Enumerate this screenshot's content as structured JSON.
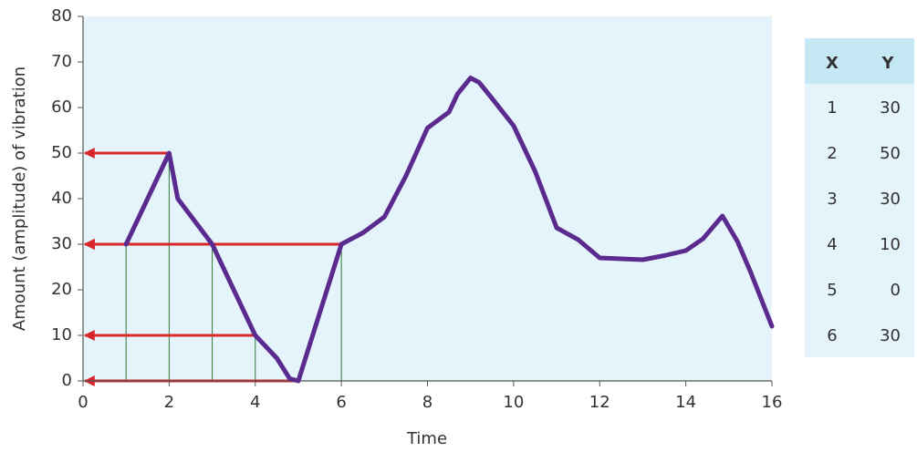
{
  "chart_data": {
    "type": "line",
    "x_label": "Time",
    "y_label": "Amount (amplitude) of vibration",
    "x": [
      1,
      2,
      2.2,
      3,
      4,
      4.5,
      4.8,
      5,
      6,
      6.5,
      7,
      7.5,
      8,
      8.5,
      8.7,
      9,
      9.2,
      9.5,
      10,
      10.5,
      11,
      11.5,
      12,
      13,
      13.5,
      14,
      14.4,
      14.85,
      15.2,
      15.5,
      16
    ],
    "series": [
      {
        "color": "#5b2a8e",
        "values": [
          30,
          50,
          40,
          30,
          10,
          5,
          0.5,
          0,
          30,
          32.5,
          36,
          45,
          55.5,
          59,
          63,
          66.5,
          65.5,
          62,
          56,
          46,
          33.6,
          31,
          27,
          26.6,
          27.5,
          28.6,
          31.2,
          36.2,
          30.6,
          24,
          12
        ]
      }
    ],
    "xlim": [
      0,
      16
    ],
    "ylim": [
      0,
      80
    ],
    "xticks": [
      0,
      2,
      4,
      6,
      8,
      10,
      12,
      14,
      16
    ],
    "yticks": [
      0,
      10,
      20,
      30,
      40,
      50,
      60,
      70,
      80
    ]
  },
  "table": {
    "header": [
      "X",
      "Y"
    ],
    "rows": [
      [
        1,
        30
      ],
      [
        2,
        50
      ],
      [
        3,
        30
      ],
      [
        4,
        10
      ],
      [
        5,
        0
      ],
      [
        6,
        30
      ]
    ]
  }
}
